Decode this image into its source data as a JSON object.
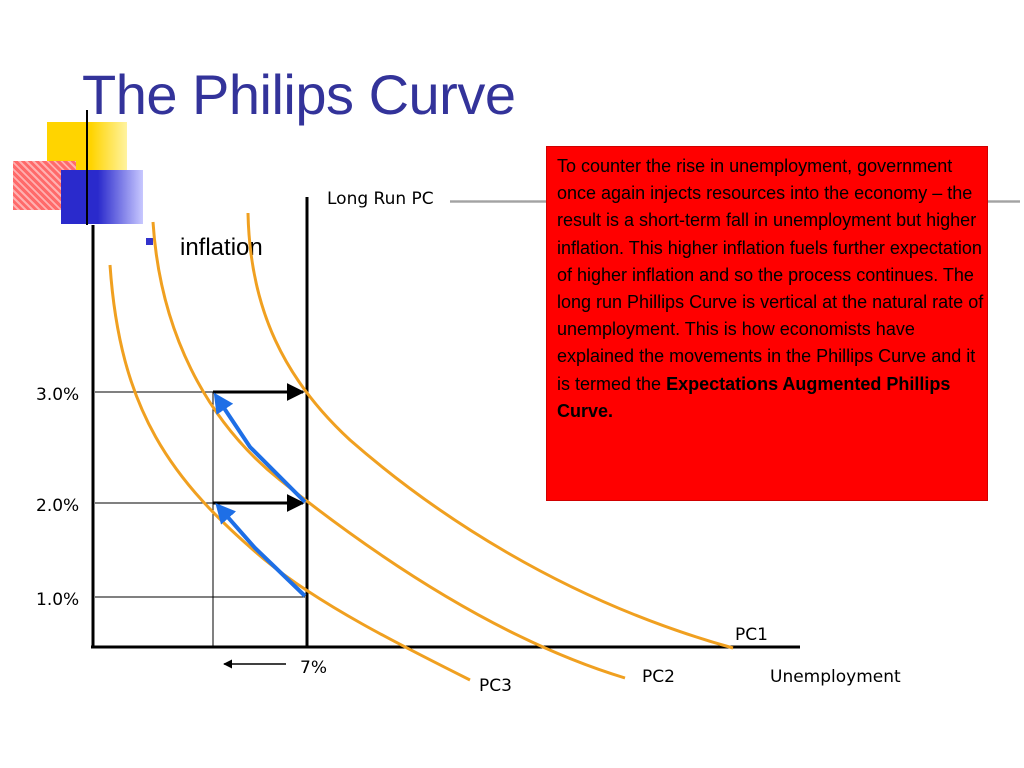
{
  "slide": {
    "title": "The Philips Curve",
    "bullet": "inflation",
    "note": {
      "text": "To counter the rise in unemployment, government once again injects resources into the economy – the result is a short-term fall in unemployment but higher inflation. This higher inflation fuels further expectation of higher inflation and so the process continues. The long run Phillips Curve is vertical at the natural rate of unemployment. This is how economists have explained the movements in the Phillips Curve and it is termed the",
      "bold_text": "Expectations Augmented Phillips Curve."
    }
  },
  "diagram": {
    "long_run_label": "Long Run PC",
    "y_ticks": [
      "3.0%",
      "2.0%",
      "1.0%"
    ],
    "natural_rate_label": "7%",
    "x_axis_label": "Unemployment",
    "curves": [
      "PC1",
      "PC2",
      "PC3"
    ]
  },
  "colors": {
    "title": "#33339a",
    "curve": "#f0a020",
    "arrow": "#1e6fe6",
    "note_bg": "#ff0000"
  }
}
